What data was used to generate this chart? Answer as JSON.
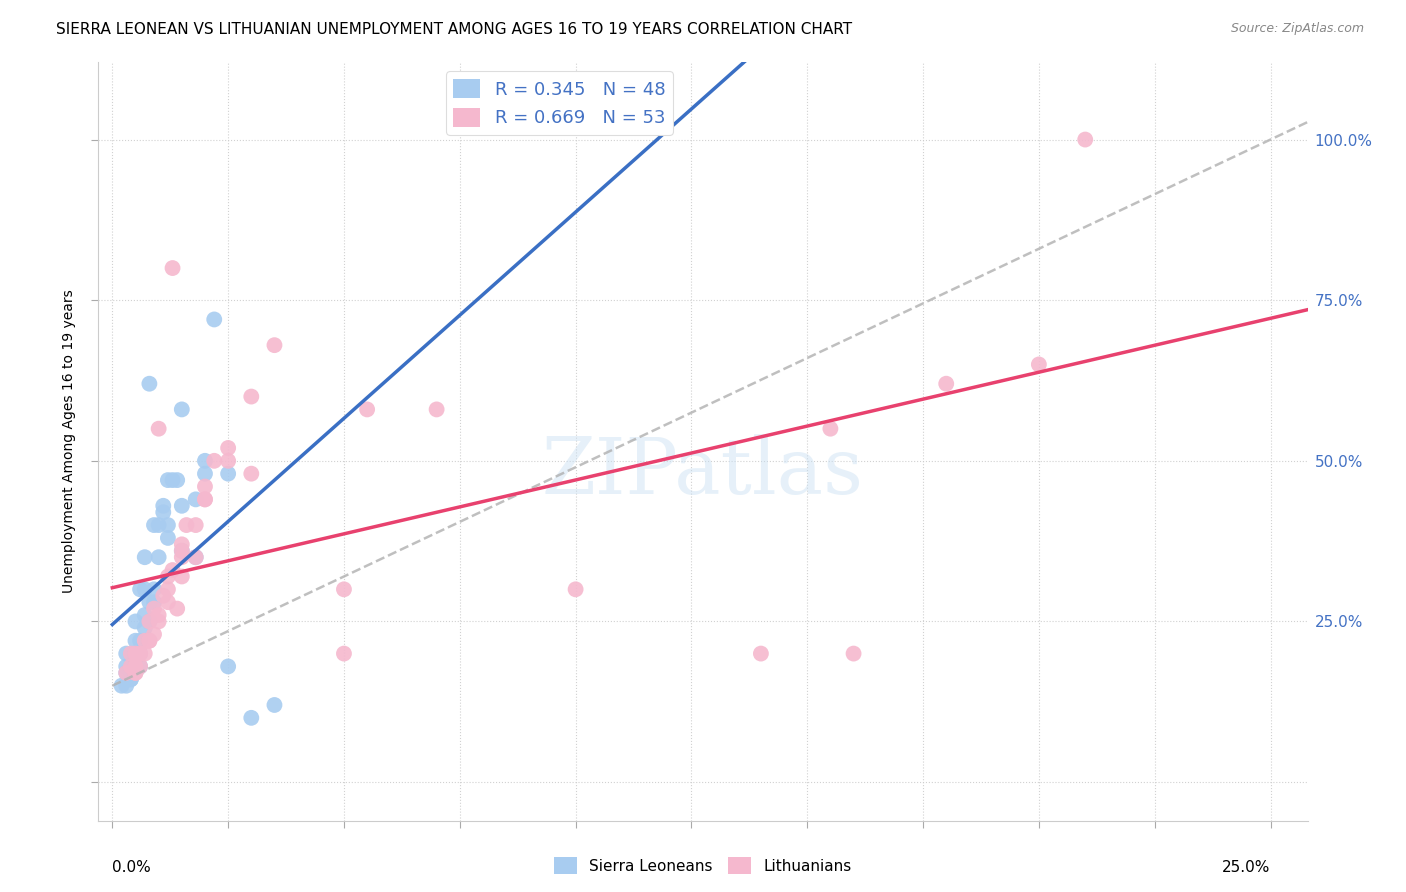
{
  "title": "SIERRA LEONEAN VS LITHUANIAN UNEMPLOYMENT AMONG AGES 16 TO 19 YEARS CORRELATION CHART",
  "source": "Source: ZipAtlas.com",
  "ylabel": "Unemployment Among Ages 16 to 19 years",
  "ytick_labels": [
    "",
    "25.0%",
    "50.0%",
    "75.0%",
    "100.0%"
  ],
  "ytick_values": [
    0.0,
    0.25,
    0.5,
    0.75,
    1.0
  ],
  "xlim": [
    -0.003,
    0.258
  ],
  "ylim": [
    -0.06,
    1.12
  ],
  "watermark": "ZIPatlas",
  "legend_blue_r": "R = 0.345",
  "legend_blue_n": "N = 48",
  "legend_pink_r": "R = 0.669",
  "legend_pink_n": "N = 53",
  "blue_scatter_color": "#A8CCF0",
  "pink_scatter_color": "#F5B8CE",
  "regression_blue_color": "#3A6FC4",
  "regression_pink_color": "#E8416E",
  "regression_gray_color": "#B0B0B0",
  "title_fontsize": 11,
  "axis_label_fontsize": 10,
  "tick_fontsize": 11,
  "sierra_x": [
    0.002,
    0.003,
    0.003,
    0.003,
    0.004,
    0.004,
    0.005,
    0.005,
    0.005,
    0.005,
    0.005,
    0.006,
    0.006,
    0.006,
    0.007,
    0.007,
    0.007,
    0.008,
    0.008,
    0.009,
    0.009,
    0.01,
    0.01,
    0.011,
    0.012,
    0.012,
    0.013,
    0.014,
    0.015,
    0.015,
    0.018,
    0.02,
    0.02,
    0.022,
    0.025,
    0.025,
    0.03,
    0.003,
    0.004,
    0.006,
    0.007,
    0.008,
    0.009,
    0.011,
    0.012,
    0.015,
    0.018,
    0.035
  ],
  "sierra_y": [
    0.15,
    0.17,
    0.18,
    0.2,
    0.16,
    0.17,
    0.18,
    0.19,
    0.2,
    0.22,
    0.25,
    0.18,
    0.22,
    0.3,
    0.24,
    0.3,
    0.35,
    0.25,
    0.62,
    0.28,
    0.4,
    0.35,
    0.4,
    0.42,
    0.38,
    0.47,
    0.47,
    0.47,
    0.43,
    0.58,
    0.44,
    0.48,
    0.5,
    0.72,
    0.18,
    0.48,
    0.1,
    0.15,
    0.16,
    0.2,
    0.26,
    0.28,
    0.3,
    0.43,
    0.4,
    0.36,
    0.35,
    0.12
  ],
  "lithua_x": [
    0.003,
    0.004,
    0.004,
    0.005,
    0.005,
    0.005,
    0.006,
    0.006,
    0.007,
    0.007,
    0.008,
    0.008,
    0.009,
    0.009,
    0.01,
    0.01,
    0.011,
    0.012,
    0.012,
    0.013,
    0.013,
    0.014,
    0.015,
    0.015,
    0.015,
    0.016,
    0.018,
    0.018,
    0.02,
    0.02,
    0.022,
    0.025,
    0.03,
    0.035,
    0.05,
    0.05,
    0.1,
    0.14,
    0.155,
    0.16,
    0.18,
    0.2,
    0.21,
    0.055,
    0.07,
    0.005,
    0.008,
    0.01,
    0.012,
    0.015,
    0.02,
    0.025,
    0.03
  ],
  "lithua_y": [
    0.17,
    0.18,
    0.2,
    0.17,
    0.18,
    0.2,
    0.18,
    0.2,
    0.2,
    0.22,
    0.22,
    0.25,
    0.23,
    0.27,
    0.25,
    0.55,
    0.29,
    0.28,
    0.32,
    0.33,
    0.8,
    0.27,
    0.35,
    0.32,
    0.37,
    0.4,
    0.35,
    0.4,
    0.44,
    0.46,
    0.5,
    0.52,
    0.6,
    0.68,
    0.3,
    0.2,
    0.3,
    0.2,
    0.55,
    0.2,
    0.62,
    0.65,
    1.0,
    0.58,
    0.58,
    0.17,
    0.22,
    0.26,
    0.3,
    0.36,
    0.44,
    0.5,
    0.48
  ]
}
